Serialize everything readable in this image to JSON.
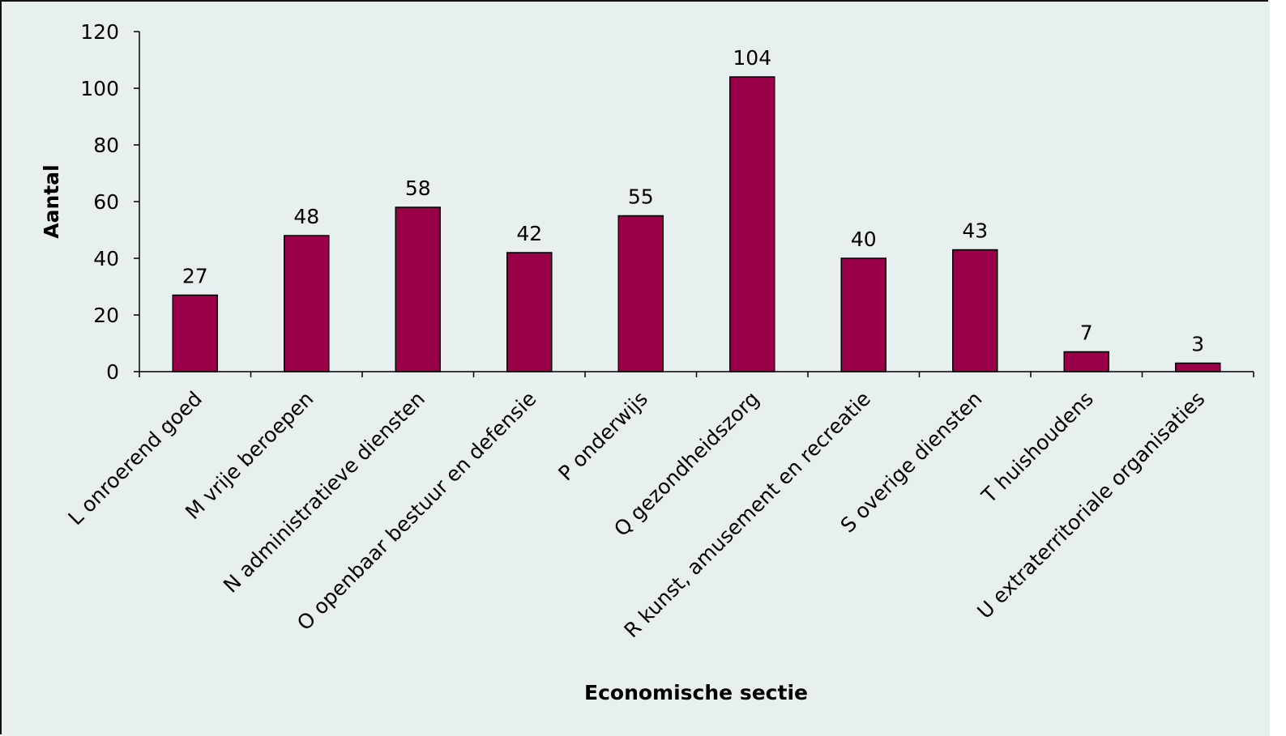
{
  "chart_data": {
    "type": "bar",
    "title": "",
    "xlabel": "Economische sectie",
    "ylabel": "Aantal",
    "categories": [
      "L onroerend goed",
      "M vrije beroepen",
      "N administratieve diensten",
      "O openbaar bestuur en defensie",
      "P onderwijs",
      "Q gezondheidszorg",
      "R kunst, amusement en recreatie",
      "S overige diensten",
      "T huishoudens",
      "U extraterritoriale organisaties"
    ],
    "values": [
      27,
      48,
      58,
      42,
      55,
      104,
      40,
      43,
      7,
      3
    ],
    "data_labels": [
      "27",
      "48",
      "58",
      "42",
      "55",
      "104",
      "40",
      "43",
      "7",
      "3"
    ],
    "ylim": [
      0,
      120
    ],
    "yticks": [
      0,
      20,
      40,
      60,
      80,
      100,
      120
    ],
    "ytick_labels": [
      "0",
      "20",
      "40",
      "60",
      "80",
      "100",
      "120"
    ],
    "grid": false,
    "legend": "none",
    "colors": {
      "bar_fill": "#990047",
      "bar_stroke": "#000000",
      "background": "#e8f0ef",
      "axis": "#000000"
    }
  }
}
